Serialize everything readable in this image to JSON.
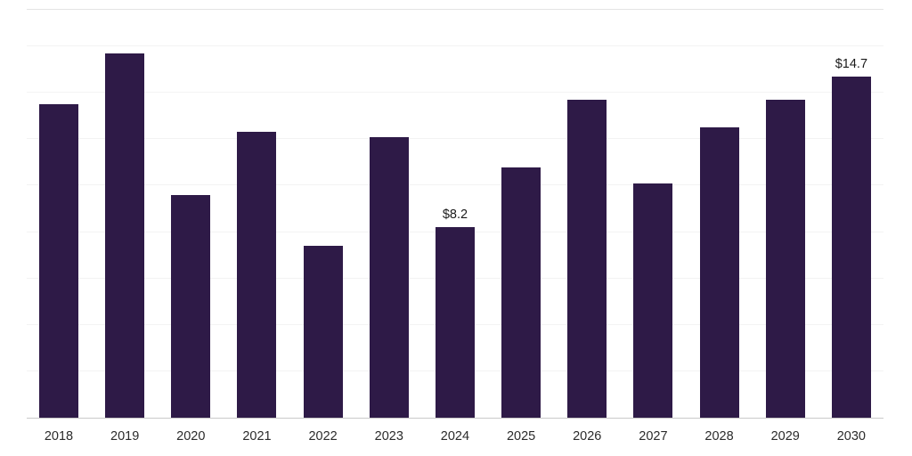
{
  "chart_data": {
    "type": "bar",
    "title": "",
    "xlabel": "",
    "ylabel": "",
    "categories": [
      "2018",
      "2019",
      "2020",
      "2021",
      "2022",
      "2023",
      "2024",
      "2025",
      "2026",
      "2027",
      "2028",
      "2029",
      "2030"
    ],
    "values": [
      13.5,
      15.7,
      9.6,
      12.3,
      7.4,
      12.1,
      8.2,
      10.8,
      13.7,
      10.1,
      12.5,
      13.7,
      14.7
    ],
    "value_labels": [
      "",
      "",
      "",
      "",
      "",
      "",
      "$8.2",
      "",
      "",
      "",
      "",
      "",
      "$14.7"
    ],
    "ylim": [
      0,
      16
    ],
    "grid": true,
    "gridline_step": 2,
    "legend": false,
    "bar_color": "#2e1a47",
    "axis_line_color": "#c9c9c9",
    "gridline_color": "#f3f3f3",
    "label_color": "#1a1a1a"
  }
}
